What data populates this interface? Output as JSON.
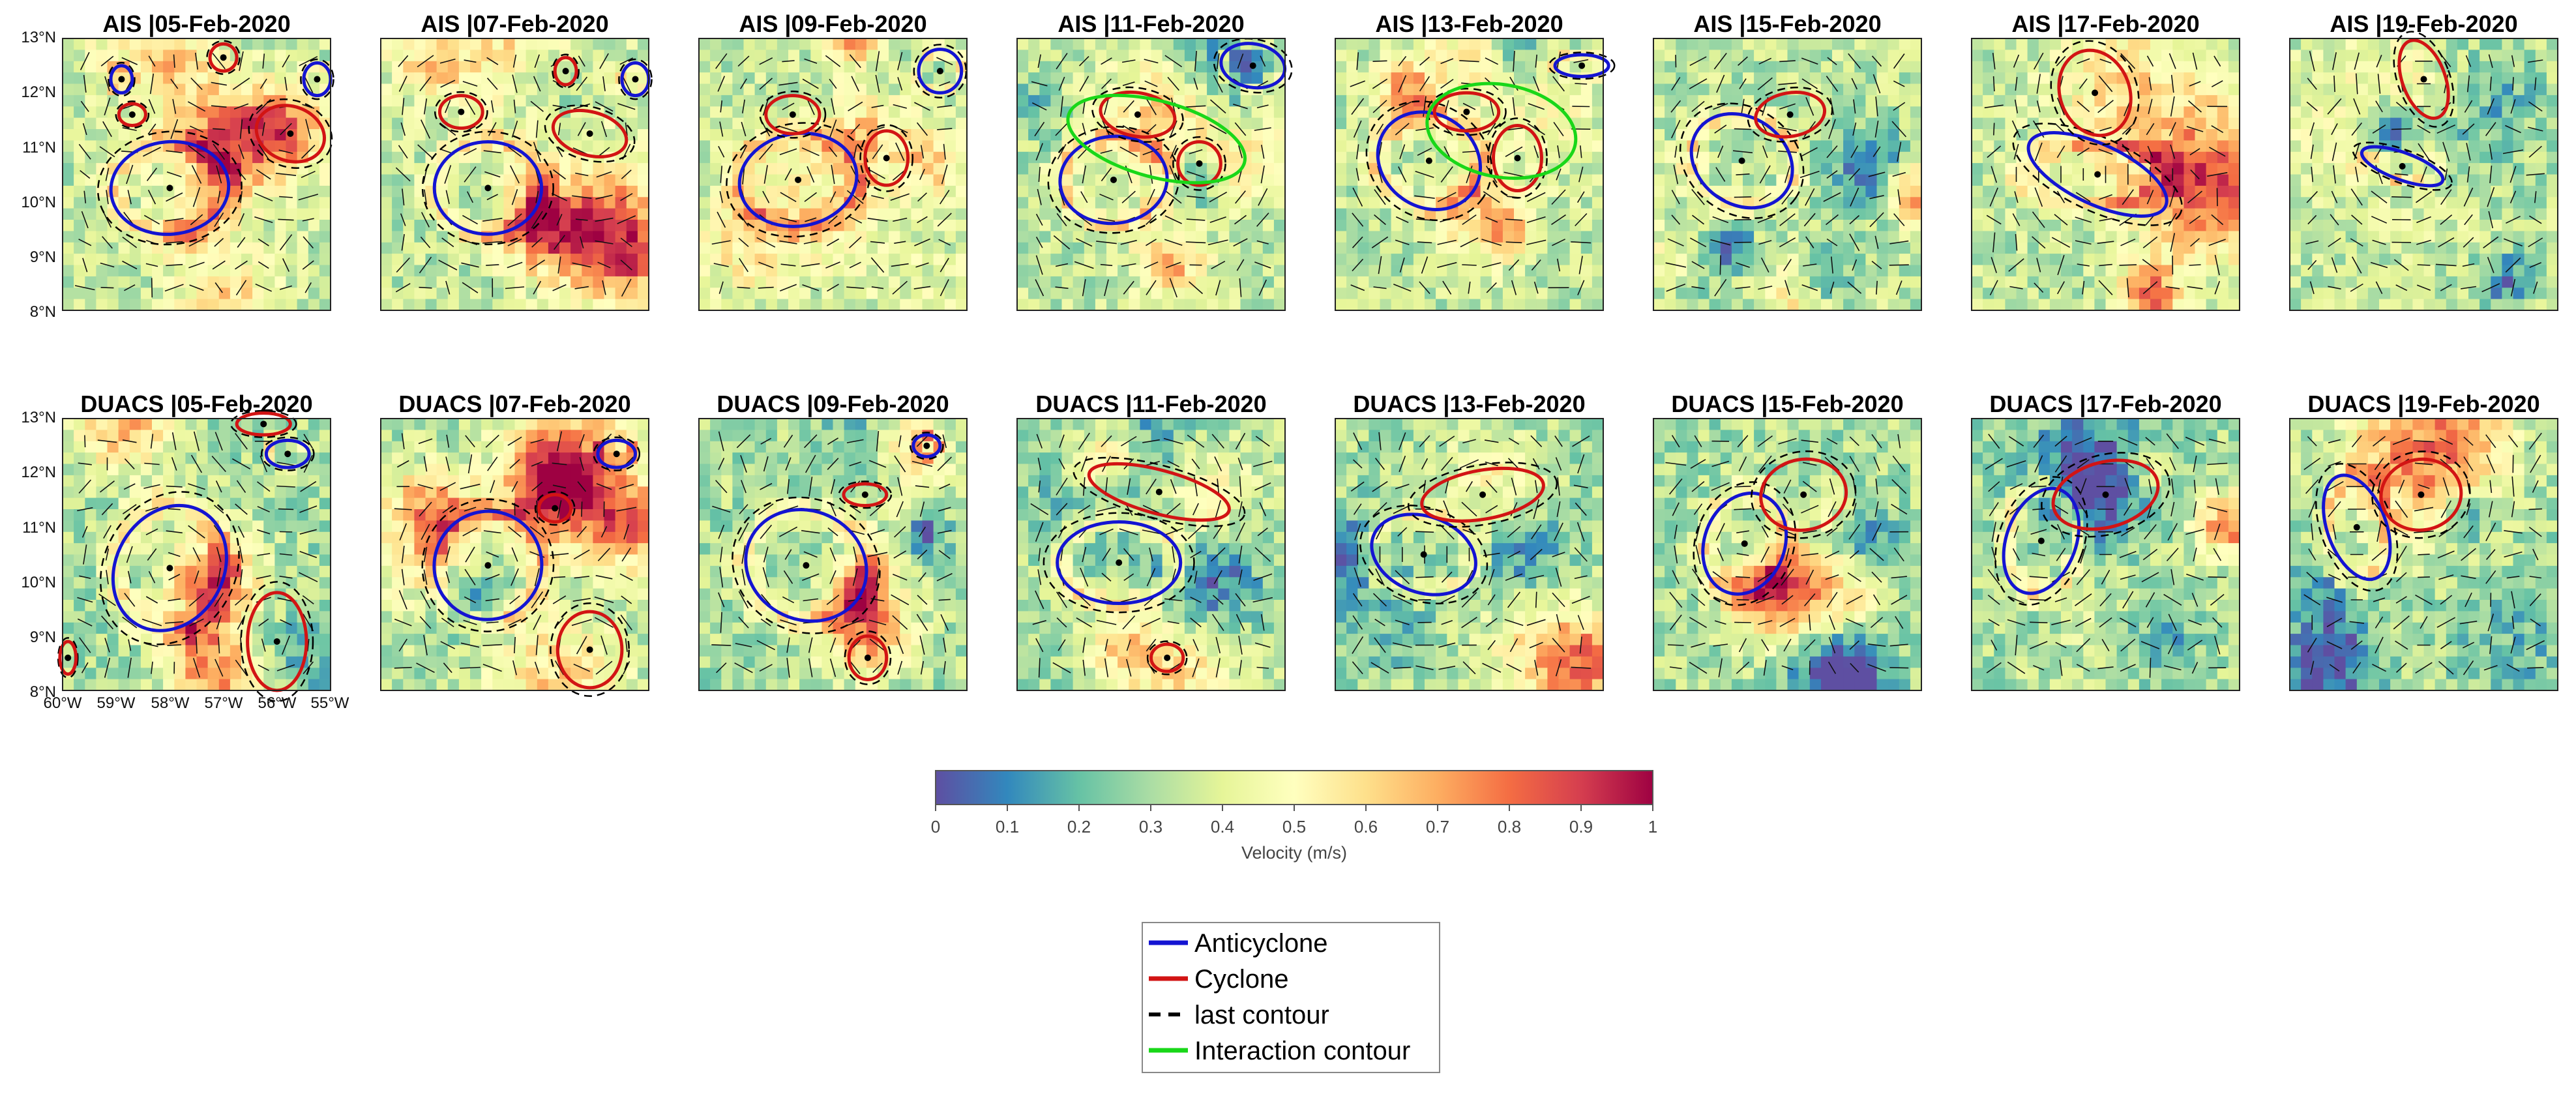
{
  "chart_data": {
    "type": "heatmap",
    "description_units": "Velocity (m/s)",
    "rows": [
      {
        "source": "AIS",
        "titles": [
          "AIS |05-Feb-2020",
          "AIS |07-Feb-2020",
          "AIS |09-Feb-2020",
          "AIS |11-Feb-2020",
          "AIS |13-Feb-2020",
          "AIS |15-Feb-2020",
          "AIS |17-Feb-2020",
          "AIS |19-Feb-2020"
        ]
      },
      {
        "source": "DUACS",
        "titles": [
          "DUACS |05-Feb-2020",
          "DUACS |07-Feb-2020",
          "DUACS |09-Feb-2020",
          "DUACS |11-Feb-2020",
          "DUACS |13-Feb-2020",
          "DUACS |15-Feb-2020",
          "DUACS |17-Feb-2020",
          "DUACS |19-Feb-2020"
        ]
      }
    ],
    "xlabels": [
      "60°W",
      "59°W",
      "58°W",
      "57°W",
      "56°W",
      "55°W"
    ],
    "ylabels": [
      "13°N",
      "12°N",
      "11°N",
      "10°N",
      "9°N",
      "8°N"
    ],
    "xlim": [
      -60,
      -55
    ],
    "ylim": [
      8,
      13
    ],
    "colorbar": {
      "label": "Velocity (m/s)",
      "ticks": [
        "0",
        "0.1",
        "0.2",
        "0.3",
        "0.4",
        "0.5",
        "0.6",
        "0.7",
        "0.8",
        "0.9",
        "1"
      ],
      "range": [
        0,
        1
      ],
      "colors": [
        "#5e4fa2",
        "#3288bd",
        "#66c2a5",
        "#abdda4",
        "#e6f598",
        "#ffffbf",
        "#fee08b",
        "#fdae61",
        "#f46d43",
        "#d53e4f",
        "#9e0142"
      ]
    },
    "legend": {
      "entries": [
        {
          "label": "Anticyclone",
          "color": "#1414d2",
          "style": "solid"
        },
        {
          "label": "Cyclone",
          "color": "#d21414",
          "style": "solid"
        },
        {
          "label": "last contour",
          "color": "#000000",
          "style": "dashed"
        },
        {
          "label": "Interaction contour",
          "color": "#19d719",
          "style": "solid"
        }
      ],
      "placement": "bottom-center"
    }
  }
}
